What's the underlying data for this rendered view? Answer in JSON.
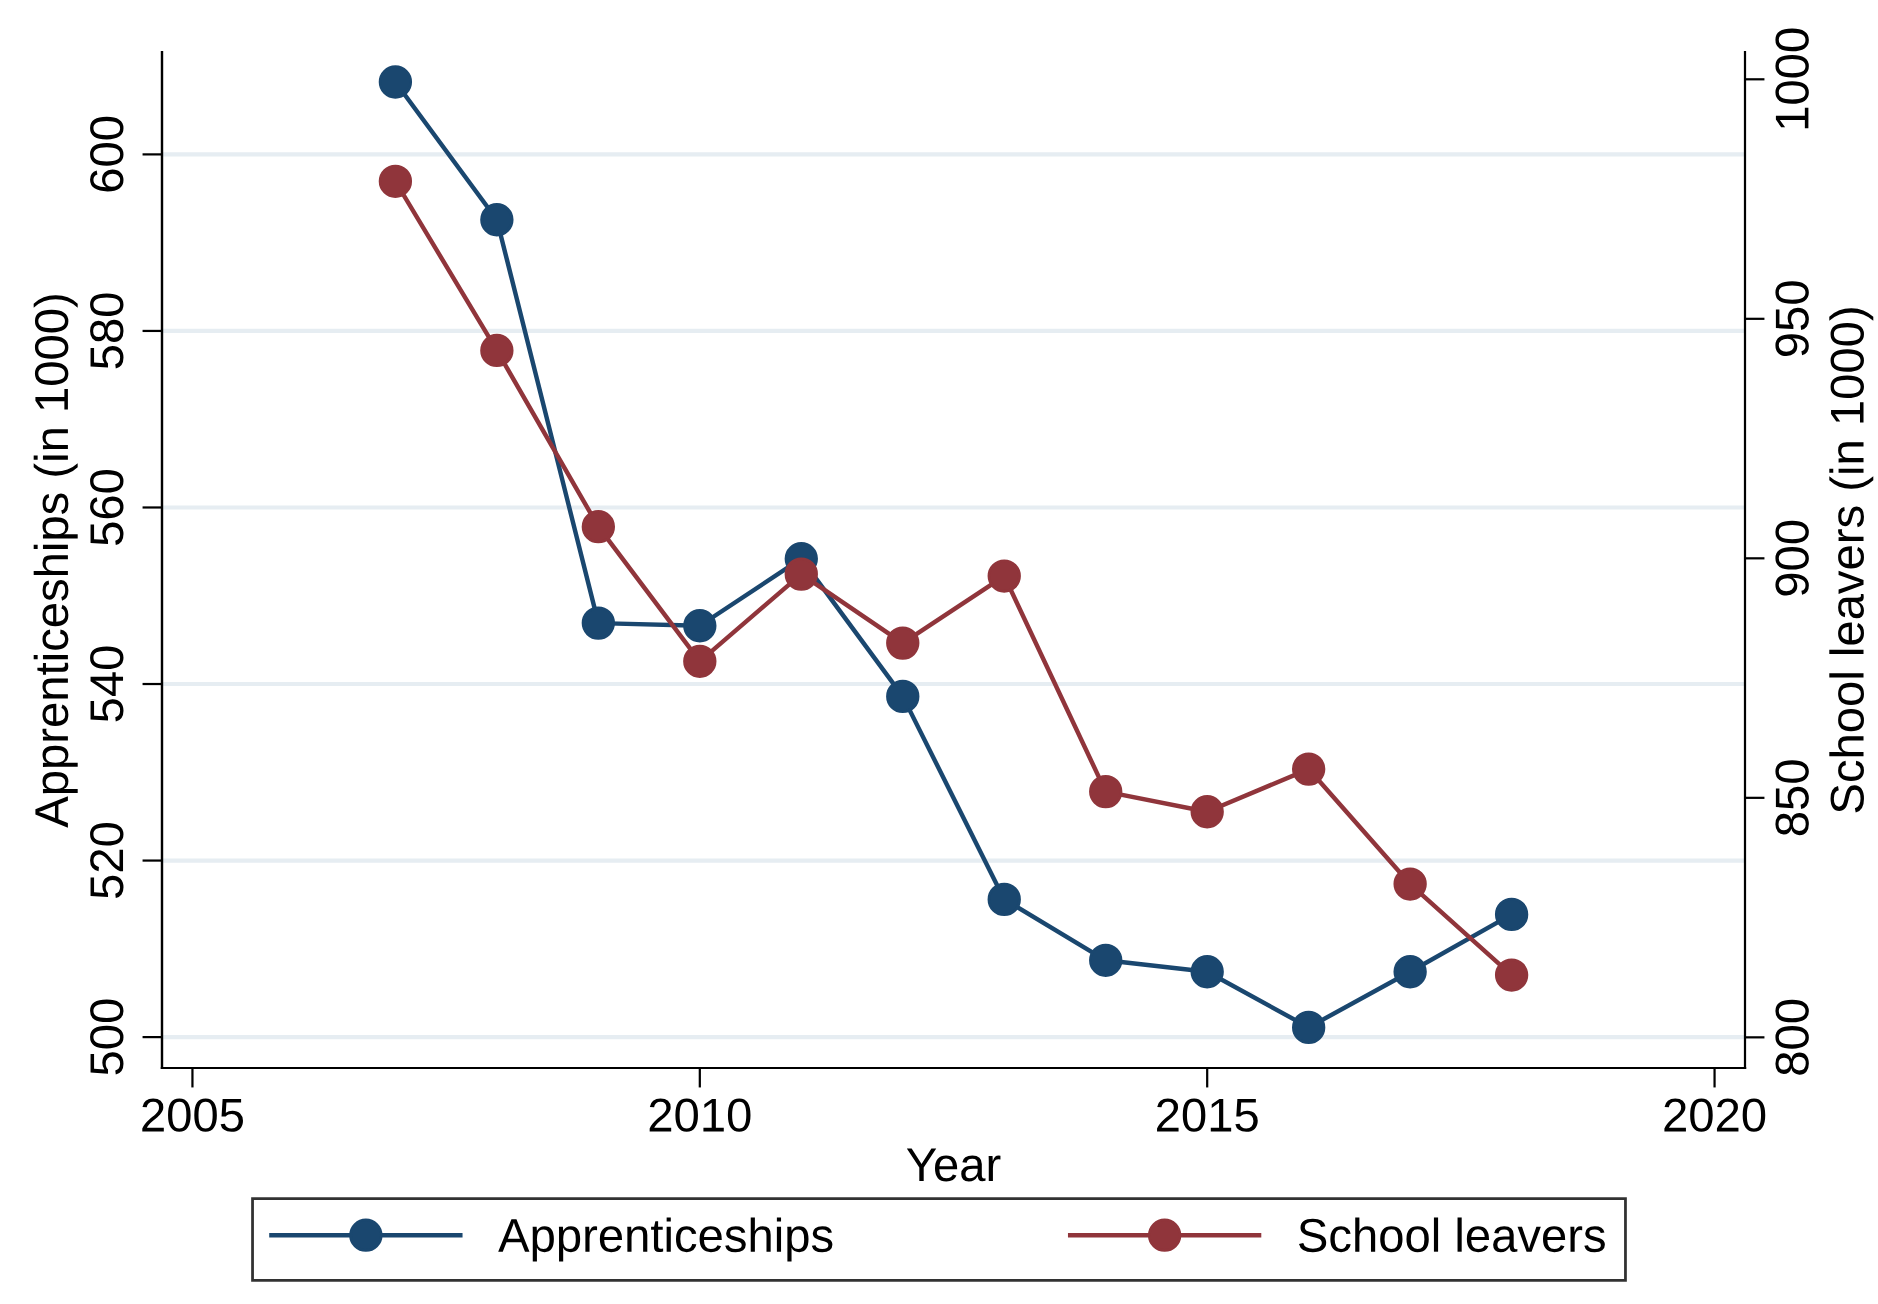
{
  "chart_data": {
    "type": "line",
    "xlabel": "Year",
    "ylabel": "Apprenticeships (in 1000)",
    "y2label": "School leavers (in 1000)",
    "x": [
      2007,
      2008,
      2009,
      2010,
      2011,
      2012,
      2013,
      2014,
      2015,
      2016,
      2017,
      2018
    ],
    "series": [
      {
        "name": "Apprenticeships",
        "color": "#1a476f",
        "values": [
          608.2,
          592.6,
          546.9,
          546.6,
          554.2,
          538.6,
          515.6,
          508.7,
          507.4,
          501.1,
          507.4,
          513.9
        ]
      },
      {
        "name": "School leavers",
        "color": "#90353b",
        "axis": "y2",
        "values": [
          978.7,
          943.4,
          906.6,
          878.5,
          896.7,
          882.3,
          896.3,
          851.3,
          847.1,
          856.0,
          832.0,
          813.0
        ]
      }
    ],
    "xlim": [
      2004.7,
      2020.3
    ],
    "xticks": [
      2005,
      2010,
      2015,
      2020
    ],
    "ylim": [
      496.5,
      611.6
    ],
    "yticks": [
      500,
      520,
      540,
      560,
      580,
      600
    ],
    "y2lim": [
      793.6,
      1005.7
    ],
    "y2ticks": [
      800,
      850,
      900,
      950,
      1000
    ],
    "grid": "y",
    "legend": "bottom",
    "marker": "circle",
    "line_style": "solid"
  }
}
